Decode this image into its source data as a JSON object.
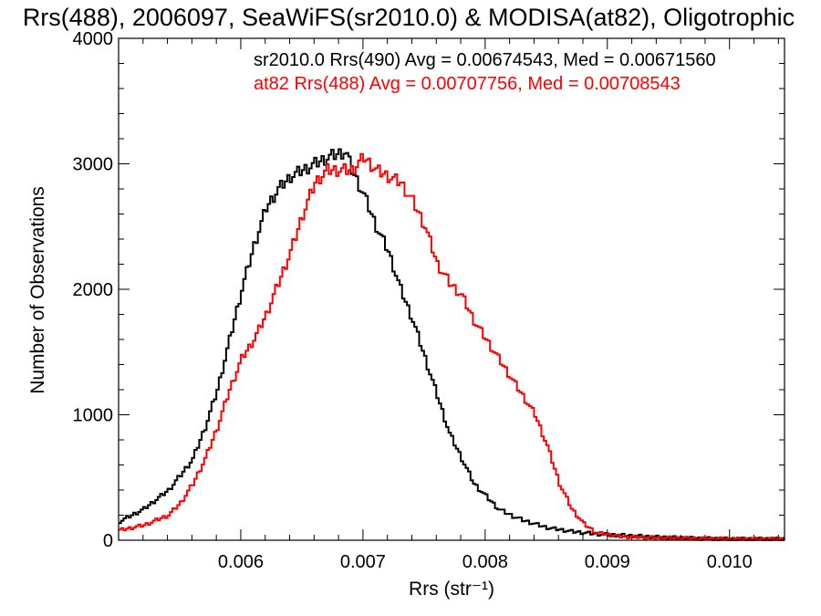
{
  "chart_data": {
    "type": "line",
    "title": "Rrs(488), 2006097, SeaWiFS(sr2010.0) & MODISA(at82), Oligotrophic",
    "xlabel": "Rrs (str⁻¹)",
    "ylabel": "Number of Observations",
    "xlim": [
      0.005,
      0.01045
    ],
    "ylim": [
      0,
      4000
    ],
    "xticks": [
      0.006,
      0.007,
      0.008,
      0.009,
      0.01
    ],
    "xtick_labels": [
      "0.006",
      "0.007",
      "0.008",
      "0.009",
      "0.010"
    ],
    "yticks": [
      0,
      1000,
      2000,
      3000,
      4000
    ],
    "ytick_labels": [
      "0",
      "1000",
      "2000",
      "3000",
      "4000"
    ],
    "grid": false,
    "legend_position": "top-right",
    "series": [
      {
        "name": "sr2010.0",
        "color": "#000000",
        "legend_text": "sr2010.0 Rrs(490) Avg = 0.00674543, Med = 0.00671560",
        "x": [
          0.005,
          0.0052,
          0.0054,
          0.0055,
          0.0056,
          0.0057,
          0.0058,
          0.0059,
          0.006,
          0.0061,
          0.0062,
          0.0063,
          0.0064,
          0.0065,
          0.0066,
          0.0067,
          0.00685,
          0.0069,
          0.007,
          0.0071,
          0.0072,
          0.0073,
          0.0074,
          0.0075,
          0.0076,
          0.0077,
          0.0078,
          0.0079,
          0.008,
          0.0081,
          0.0082,
          0.0083,
          0.0084,
          0.0085,
          0.0087,
          0.0089,
          0.0091,
          0.0094,
          0.0097,
          0.01,
          0.01045
        ],
        "y": [
          150,
          250,
          400,
          520,
          650,
          900,
          1200,
          1600,
          2000,
          2350,
          2650,
          2800,
          2900,
          2950,
          3000,
          3050,
          3100,
          2950,
          2750,
          2500,
          2300,
          2000,
          1750,
          1450,
          1150,
          850,
          650,
          450,
          350,
          250,
          200,
          160,
          130,
          100,
          70,
          50,
          40,
          25,
          15,
          10,
          10
        ]
      },
      {
        "name": "at82",
        "color": "#ff0000",
        "legend_text": "at82 Rrs(488) Avg = 0.00707756, Med = 0.00708543",
        "x": [
          0.005,
          0.0052,
          0.0054,
          0.0055,
          0.0056,
          0.0057,
          0.0058,
          0.0059,
          0.006,
          0.0061,
          0.0062,
          0.0063,
          0.0064,
          0.0065,
          0.0066,
          0.0067,
          0.0068,
          0.0069,
          0.007,
          0.0071,
          0.0072,
          0.0073,
          0.0074,
          0.0075,
          0.0076,
          0.0077,
          0.0078,
          0.0079,
          0.008,
          0.0081,
          0.0082,
          0.0083,
          0.0084,
          0.0085,
          0.0086,
          0.0087,
          0.0088,
          0.0089,
          0.0091,
          0.0094,
          0.0097,
          0.01,
          0.01045
        ],
        "y": [
          80,
          120,
          200,
          300,
          450,
          650,
          900,
          1200,
          1450,
          1600,
          1800,
          2050,
          2300,
          2600,
          2850,
          2950,
          2950,
          2950,
          3050,
          2950,
          2900,
          2850,
          2700,
          2500,
          2200,
          2050,
          1950,
          1750,
          1600,
          1450,
          1300,
          1150,
          1000,
          750,
          450,
          250,
          130,
          60,
          30,
          20,
          15,
          10,
          10
        ]
      }
    ]
  }
}
